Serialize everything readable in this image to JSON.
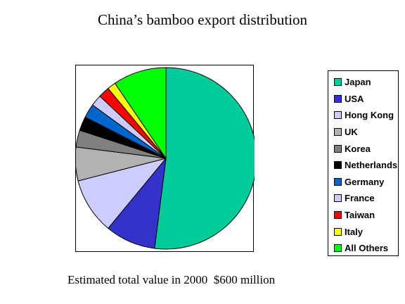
{
  "chart_data": {
    "type": "pie",
    "title": "China’s bamboo export distribution",
    "caption": "Estimated total value in 2000  $600 million",
    "legend_position": "right",
    "slices": [
      {
        "label": "Japan",
        "value": 52,
        "color": "#00cc99"
      },
      {
        "label": "USA",
        "value": 9,
        "color": "#3333cc"
      },
      {
        "label": "Hong Kong",
        "value": 10,
        "color": "#ccccff"
      },
      {
        "label": "UK",
        "value": 6,
        "color": "#b2b2b2"
      },
      {
        "label": "Korea",
        "value": 3,
        "color": "#808080"
      },
      {
        "label": "Netherlands",
        "value": 2.5,
        "color": "#000000"
      },
      {
        "label": "Germany",
        "value": 2.5,
        "color": "#0066cc"
      },
      {
        "label": "France",
        "value": 2,
        "color": "#ccccff"
      },
      {
        "label": "Taiwan",
        "value": 2,
        "color": "#ff0000"
      },
      {
        "label": "Italy",
        "value": 1.5,
        "color": "#ffff00"
      },
      {
        "label": "All Others",
        "value": 9.5,
        "color": "#00ff00"
      }
    ]
  }
}
